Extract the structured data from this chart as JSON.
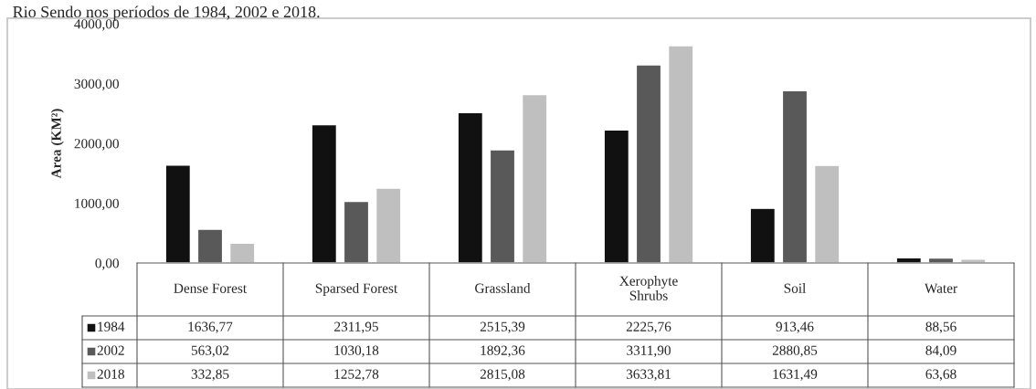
{
  "chart_data": {
    "type": "bar",
    "title": "Rio Sendo nos períodos de 1984, 2002 e 2018.",
    "ylabel": "Area (KM²)",
    "categories": [
      "Dense Forest",
      "Sparsed Forest",
      "Grassland",
      "Xerophyte\nShrubs",
      "Soil",
      "Water"
    ],
    "series": [
      {
        "name": "1984",
        "color": "#111111",
        "values": [
          1636.77,
          2311.95,
          2515.39,
          2225.76,
          913.46,
          88.56
        ],
        "value_labels": [
          "1636,77",
          "2311,95",
          "2515,39",
          "2225,76",
          "913,46",
          "88,56"
        ]
      },
      {
        "name": "2002",
        "color": "#595959",
        "values": [
          563.02,
          1030.18,
          1892.36,
          3311.9,
          2880.85,
          84.09
        ],
        "value_labels": [
          "563,02",
          "1030,18",
          "1892,36",
          "3311,90",
          "2880,85",
          "84,09"
        ]
      },
      {
        "name": "2018",
        "color": "#bfbfbf",
        "values": [
          332.85,
          1252.78,
          2815.08,
          3633.81,
          1631.49,
          63.68
        ],
        "value_labels": [
          "332,85",
          "1252,78",
          "2815,08",
          "3633,81",
          "1631,49",
          "63,68"
        ]
      }
    ],
    "ylim": [
      0,
      4000
    ],
    "yticks": [
      {
        "value": 0,
        "label": "0,00"
      },
      {
        "value": 1000,
        "label": "1000,00"
      },
      {
        "value": 2000,
        "label": "2000,00"
      },
      {
        "value": 3000,
        "label": "3000,00"
      },
      {
        "value": 4000,
        "label": "4000,00"
      }
    ],
    "grid": false,
    "legend": "bottom"
  }
}
